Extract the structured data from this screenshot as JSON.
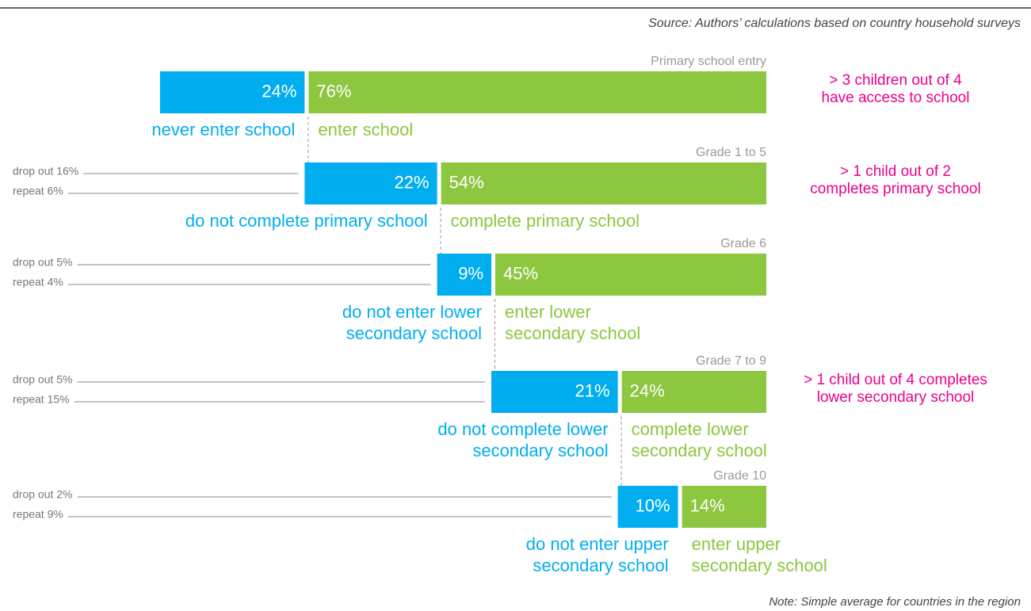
{
  "chart_data": {
    "type": "flow",
    "source": "Source: Authors’ calculations based on country household surveys",
    "note": "Note: Simple average for countries in the region",
    "out_color": "#00aeef",
    "in_color": "#8dc63f",
    "callout_color": "#ec008c",
    "stages": [
      {
        "label": "Primary school entry",
        "values": [
          24,
          76
        ],
        "value_labels": [
          "24%",
          "76%"
        ],
        "out_label": [
          "never enter school"
        ],
        "in_label": [
          "enter school"
        ],
        "callout": [
          "> 3 children out of 4",
          "have access to school"
        ],
        "breakdown": []
      },
      {
        "label": "Grade 1 to 5",
        "values": [
          22,
          54
        ],
        "value_labels": [
          "22%",
          "54%"
        ],
        "out_label": [
          "do not complete primary school"
        ],
        "in_label": [
          "complete primary school"
        ],
        "callout": [
          "> 1 child out of 2",
          "completes primary school"
        ],
        "breakdown": [
          "drop out 16%",
          "repeat 6%"
        ]
      },
      {
        "label": "Grade 6",
        "values": [
          9,
          45
        ],
        "value_labels": [
          "9%",
          "45%"
        ],
        "out_label": [
          "do not enter lower",
          "secondary school"
        ],
        "in_label": [
          "enter lower",
          "secondary school"
        ],
        "callout": [],
        "breakdown": [
          "drop out 5%",
          "repeat 4%"
        ]
      },
      {
        "label": "Grade 7 to 9",
        "values": [
          21,
          24
        ],
        "value_labels": [
          "21%",
          "24%"
        ],
        "out_label": [
          "do not complete lower",
          "secondary school"
        ],
        "in_label": [
          "complete lower",
          "secondary school"
        ],
        "callout": [
          "> 1 child out of 4 completes",
          "lower secondary school"
        ],
        "breakdown": [
          "drop out 5%",
          "repeat 15%"
        ]
      },
      {
        "label": "Grade 10",
        "values": [
          10,
          14
        ],
        "value_labels": [
          "10%",
          "14%"
        ],
        "out_label": [
          "do not enter upper",
          "secondary school"
        ],
        "in_label": [
          "enter upper",
          "secondary school"
        ],
        "callout": [],
        "breakdown": [
          "drop out 2%",
          "repeat 9%"
        ]
      }
    ]
  }
}
